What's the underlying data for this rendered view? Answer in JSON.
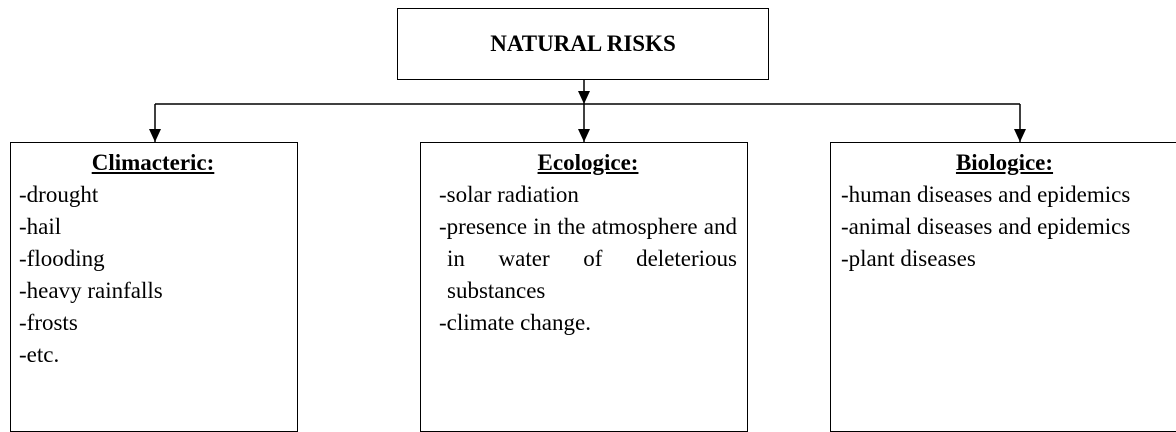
{
  "title": "NATURAL RISKS",
  "boxes": [
    {
      "heading": "Climacteric:",
      "items": [
        "-drought",
        "-hail",
        "-flooding",
        "-heavy rainfalls",
        "-frosts",
        "-etc."
      ]
    },
    {
      "heading": "Ecologice:",
      "items": [
        "-solar radiation",
        "-presence in the atmosphere and in water of deleterious substances",
        "-climate change."
      ]
    },
    {
      "heading": "Biologice:",
      "items": [
        "-human diseases and epidemics",
        "-animal diseases and epidemics",
        "-plant diseases"
      ]
    }
  ]
}
